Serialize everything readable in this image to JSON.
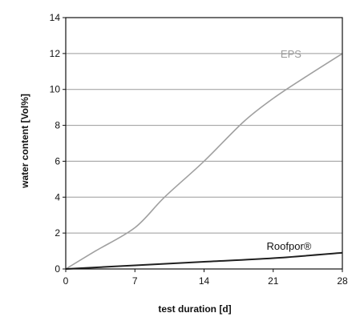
{
  "chart_data": {
    "type": "line",
    "xlabel": "test duration [d]",
    "ylabel": "water content [Vol%]",
    "xlim": [
      0,
      28
    ],
    "ylim": [
      0,
      14
    ],
    "x_ticks": [
      "0",
      "7",
      "14",
      "21",
      "28"
    ],
    "y_ticks": [
      "0",
      "2",
      "4",
      "6",
      "8",
      "10",
      "12",
      "14"
    ],
    "grid": "horizontal",
    "series": [
      {
        "name": "EPS",
        "color": "#a0a0a0",
        "x": [
          0,
          3,
          7,
          10,
          14,
          18,
          21,
          24,
          28
        ],
        "y": [
          0,
          1.0,
          2.3,
          4.0,
          6.0,
          8.2,
          9.5,
          10.6,
          12.0
        ]
      },
      {
        "name": "Roofpor®",
        "color": "#202020",
        "x": [
          0,
          7,
          14,
          21,
          28
        ],
        "y": [
          0,
          0.2,
          0.4,
          0.6,
          0.9
        ]
      }
    ]
  }
}
